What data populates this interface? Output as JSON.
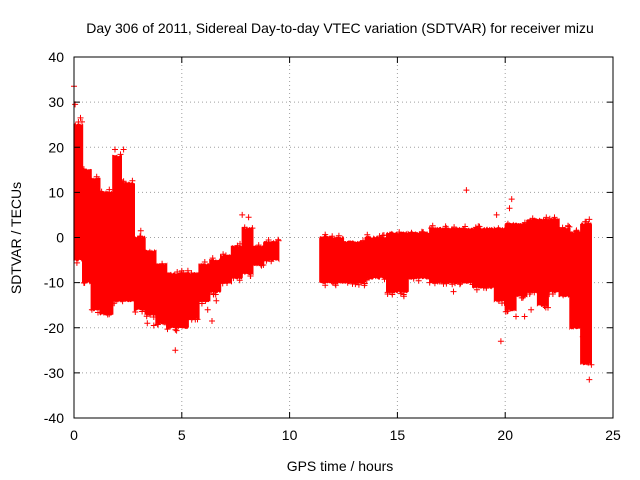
{
  "chart_data": {
    "type": "scatter",
    "title": "Day 306 of 2011, Sidereal Day-to-day VTEC variation (SDTVAR) for receiver mizu",
    "xlabel": "GPS time / hours",
    "ylabel": "SDTVAR / TECUs",
    "xlim": [
      0,
      25
    ],
    "ylim": [
      -40,
      40
    ],
    "x_ticks": [
      0,
      5,
      10,
      15,
      20,
      25
    ],
    "y_ticks": [
      -40,
      -30,
      -20,
      -10,
      0,
      10,
      20,
      30,
      40
    ],
    "grid": true,
    "marker": "+",
    "color": "#ff0000",
    "series": [
      {
        "name": "SDTVAR",
        "segments": [
          {
            "x_start": 0.0,
            "x_end": 0.4,
            "low": -5,
            "high": 25
          },
          {
            "x_start": 0.4,
            "x_end": 0.8,
            "low": -10,
            "high": 15
          },
          {
            "x_start": 0.8,
            "x_end": 1.2,
            "low": -16,
            "high": 13
          },
          {
            "x_start": 1.2,
            "x_end": 1.8,
            "low": -17,
            "high": 10
          },
          {
            "x_start": 1.8,
            "x_end": 2.2,
            "low": -14,
            "high": 18
          },
          {
            "x_start": 2.2,
            "x_end": 2.8,
            "low": -14,
            "high": 12
          },
          {
            "x_start": 2.8,
            "x_end": 3.3,
            "low": -16,
            "high": 0
          },
          {
            "x_start": 3.3,
            "x_end": 3.8,
            "low": -17,
            "high": -3
          },
          {
            "x_start": 3.8,
            "x_end": 4.3,
            "low": -19,
            "high": -6
          },
          {
            "x_start": 4.3,
            "x_end": 4.8,
            "low": -20,
            "high": -8
          },
          {
            "x_start": 4.8,
            "x_end": 5.3,
            "low": -20,
            "high": -8
          },
          {
            "x_start": 5.3,
            "x_end": 5.8,
            "low": -18,
            "high": -8
          },
          {
            "x_start": 5.8,
            "x_end": 6.3,
            "low": -14,
            "high": -6
          },
          {
            "x_start": 6.3,
            "x_end": 6.8,
            "low": -12,
            "high": -5
          },
          {
            "x_start": 6.8,
            "x_end": 7.3,
            "low": -10,
            "high": -4
          },
          {
            "x_start": 7.3,
            "x_end": 7.8,
            "low": -9,
            "high": -2
          },
          {
            "x_start": 7.8,
            "x_end": 8.3,
            "low": -8,
            "high": 2
          },
          {
            "x_start": 8.3,
            "x_end": 8.8,
            "low": -6,
            "high": -2
          },
          {
            "x_start": 8.8,
            "x_end": 9.5,
            "low": -5,
            "high": -1
          },
          {
            "x_start": 11.4,
            "x_end": 12.5,
            "low": -10,
            "high": 0
          },
          {
            "x_start": 12.5,
            "x_end": 13.5,
            "low": -10,
            "high": -1
          },
          {
            "x_start": 13.5,
            "x_end": 14.5,
            "low": -9,
            "high": 0
          },
          {
            "x_start": 14.5,
            "x_end": 15.5,
            "low": -12,
            "high": 1
          },
          {
            "x_start": 15.5,
            "x_end": 16.5,
            "low": -9,
            "high": 1
          },
          {
            "x_start": 16.5,
            "x_end": 17.5,
            "low": -10,
            "high": 2
          },
          {
            "x_start": 17.5,
            "x_end": 18.5,
            "low": -10,
            "high": 2
          },
          {
            "x_start": 18.5,
            "x_end": 19.5,
            "low": -11,
            "high": 2
          },
          {
            "x_start": 19.5,
            "x_end": 20.0,
            "low": -14,
            "high": 2
          },
          {
            "x_start": 20.0,
            "x_end": 20.5,
            "low": -16,
            "high": 3
          },
          {
            "x_start": 20.5,
            "x_end": 21.0,
            "low": -13,
            "high": 3
          },
          {
            "x_start": 21.0,
            "x_end": 21.5,
            "low": -12,
            "high": 4
          },
          {
            "x_start": 21.5,
            "x_end": 22.0,
            "low": -15,
            "high": 4
          },
          {
            "x_start": 22.0,
            "x_end": 22.5,
            "low": -12,
            "high": 4
          },
          {
            "x_start": 22.5,
            "x_end": 23.0,
            "low": -13,
            "high": 2
          },
          {
            "x_start": 23.0,
            "x_end": 23.5,
            "low": -20,
            "high": 1
          },
          {
            "x_start": 23.5,
            "x_end": 24.0,
            "low": -28,
            "high": 3
          }
        ],
        "outliers": [
          {
            "x": 0.0,
            "y": 33.5
          },
          {
            "x": 0.05,
            "y": 29.5
          },
          {
            "x": 0.15,
            "y": 23
          },
          {
            "x": 0.3,
            "y": 26.5
          },
          {
            "x": 1.9,
            "y": 19.5
          },
          {
            "x": 2.3,
            "y": 19.5
          },
          {
            "x": 1.5,
            "y": -16
          },
          {
            "x": 3.1,
            "y": 1.5
          },
          {
            "x": 3.4,
            "y": -19
          },
          {
            "x": 3.7,
            "y": -19.5
          },
          {
            "x": 4.7,
            "y": -25
          },
          {
            "x": 6.2,
            "y": -16
          },
          {
            "x": 6.4,
            "y": -18.5
          },
          {
            "x": 6.6,
            "y": -14
          },
          {
            "x": 7.8,
            "y": 5
          },
          {
            "x": 8.1,
            "y": 4.5
          },
          {
            "x": 12.0,
            "y": -10
          },
          {
            "x": 15.3,
            "y": -13
          },
          {
            "x": 16.5,
            "y": -10
          },
          {
            "x": 17.6,
            "y": -12
          },
          {
            "x": 18.2,
            "y": 10.5
          },
          {
            "x": 19.6,
            "y": 5
          },
          {
            "x": 19.8,
            "y": -23
          },
          {
            "x": 20.2,
            "y": 6.5
          },
          {
            "x": 20.3,
            "y": 8.5
          },
          {
            "x": 20.5,
            "y": -17.5
          },
          {
            "x": 20.9,
            "y": -17.5
          },
          {
            "x": 21.2,
            "y": -16
          },
          {
            "x": 23.6,
            "y": -22
          },
          {
            "x": 23.8,
            "y": -27
          },
          {
            "x": 23.9,
            "y": -31.5
          },
          {
            "x": 23.9,
            "y": 4
          }
        ]
      }
    ]
  }
}
